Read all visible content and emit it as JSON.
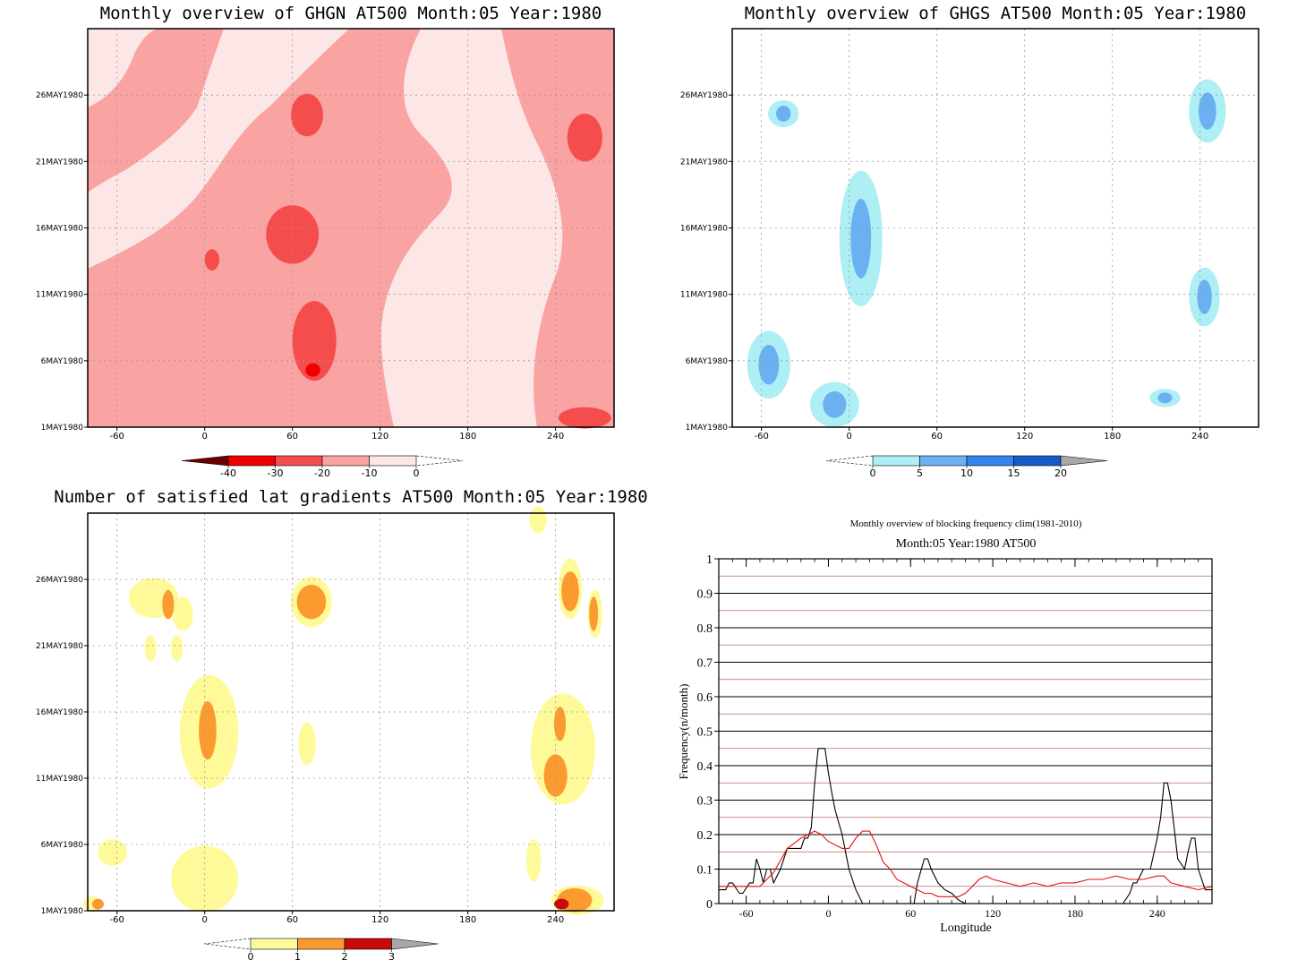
{
  "chart_data": [
    {
      "type": "heatmap",
      "title": "Monthly overview of GHGN AT500 Month:05 Year:1980",
      "x_ticks": [
        "-60",
        "0",
        "60",
        "120",
        "180",
        "240"
      ],
      "x_tick_values": [
        -60,
        0,
        60,
        120,
        180,
        240
      ],
      "y_ticks": [
        "1MAY1980",
        "6MAY1980",
        "11MAY1980",
        "16MAY1980",
        "21MAY1980",
        "26MAY1980"
      ],
      "y_tick_values": [
        1,
        6,
        11,
        16,
        21,
        26
      ],
      "xlim": [
        -80,
        280
      ],
      "ylim": [
        1,
        31
      ],
      "colorbar": {
        "labels": [
          "-40",
          "-30",
          "-20",
          "-10",
          "0"
        ],
        "colors": [
          "#6b0000",
          "#ee0000",
          "#f54c4c",
          "#f9a3a3",
          "#fde6e6"
        ]
      },
      "regions": [
        {
          "level": -20,
          "lon": 60,
          "day": 15.5,
          "rlon": 18,
          "rday": 2.2
        },
        {
          "level": -20,
          "lon": 75,
          "day": 7.5,
          "rlon": 15,
          "rday": 3.0
        },
        {
          "level": -20,
          "lon": 70,
          "day": 24.5,
          "rlon": 11,
          "rday": 1.6
        },
        {
          "level": -20,
          "lon": 5,
          "day": 13.6,
          "rlon": 5,
          "rday": 0.8
        },
        {
          "level": -20,
          "lon": 260,
          "day": 22.8,
          "rlon": 12,
          "rday": 1.8
        },
        {
          "level": -20,
          "lon": 260,
          "day": 1.7,
          "rlon": 18,
          "rday": 0.8
        },
        {
          "level": -30,
          "lon": 74,
          "day": 5.3,
          "rlon": 5,
          "rday": 0.5
        }
      ]
    },
    {
      "type": "heatmap",
      "title": "Monthly overview of GHGS AT500 Month:05 Year:1980",
      "x_ticks": [
        "-60",
        "0",
        "60",
        "120",
        "180",
        "240"
      ],
      "x_tick_values": [
        -60,
        0,
        60,
        120,
        180,
        240
      ],
      "y_ticks": [
        "1MAY1980",
        "6MAY1980",
        "11MAY1980",
        "16MAY1980",
        "21MAY1980",
        "26MAY1980"
      ],
      "y_tick_values": [
        1,
        6,
        11,
        16,
        21,
        26
      ],
      "xlim": [
        -80,
        280
      ],
      "ylim": [
        1,
        31
      ],
      "colorbar": {
        "labels": [
          "0",
          "5",
          "10",
          "15",
          "20"
        ],
        "colors": [
          "#aeeef5",
          "#6bb0f1",
          "#3284ef",
          "#1859c9",
          "#a8a8a8"
        ]
      },
      "regions": [
        {
          "level": 5,
          "lon": 8,
          "day": 15.2,
          "rlon": 7,
          "rday": 3.0
        },
        {
          "level": 5,
          "lon": -55,
          "day": 5.7,
          "rlon": 7,
          "rday": 1.5
        },
        {
          "level": 5,
          "lon": -45,
          "day": 24.6,
          "rlon": 5,
          "rday": 0.6
        },
        {
          "level": 5,
          "lon": 245,
          "day": 24.8,
          "rlon": 6,
          "rday": 1.4
        },
        {
          "level": 5,
          "lon": 243,
          "day": 10.8,
          "rlon": 5,
          "rday": 1.3
        },
        {
          "level": 5,
          "lon": -10,
          "day": 2.7,
          "rlon": 8,
          "rday": 1.0
        },
        {
          "level": 5,
          "lon": 216,
          "day": 3.2,
          "rlon": 5,
          "rday": 0.4
        }
      ]
    },
    {
      "type": "heatmap",
      "title": "Number of satisfied lat gradients AT500 Month:05 Year:1980",
      "x_ticks": [
        "-60",
        "0",
        "60",
        "120",
        "180",
        "240"
      ],
      "x_tick_values": [
        -60,
        0,
        60,
        120,
        180,
        240
      ],
      "y_ticks": [
        "1MAY1980",
        "6MAY1980",
        "11MAY1980",
        "16MAY1980",
        "21MAY1980",
        "26MAY1980"
      ],
      "y_tick_values": [
        1,
        6,
        11,
        16,
        21,
        26
      ],
      "xlim": [
        -80,
        280
      ],
      "ylim": [
        1,
        31
      ],
      "colorbar": {
        "labels": [
          "0",
          "1",
          "2",
          "3"
        ],
        "colors": [
          "#fffa99",
          "#fb9a2e",
          "#c8080a",
          "#a8a8a8"
        ]
      },
      "regions": [
        {
          "level": 0,
          "lon": -35,
          "day": 24.6,
          "rlon": 17,
          "rday": 1.5
        },
        {
          "level": 0,
          "lon": -15,
          "day": 23.4,
          "rlon": 7,
          "rday": 1.3
        },
        {
          "level": 0,
          "lon": -37,
          "day": 20.8,
          "rlon": 4,
          "rday": 1.0
        },
        {
          "level": 0,
          "lon": -19,
          "day": 20.8,
          "rlon": 4,
          "rday": 1.0
        },
        {
          "level": 0,
          "lon": 73,
          "day": 24.3,
          "rlon": 14,
          "rday": 1.9
        },
        {
          "level": 0,
          "lon": 228,
          "day": 30.5,
          "rlon": 6,
          "rday": 1.0
        },
        {
          "level": 0,
          "lon": 250,
          "day": 25.3,
          "rlon": 8,
          "rday": 2.3
        },
        {
          "level": 0,
          "lon": 267,
          "day": 23.4,
          "rlon": 5,
          "rday": 1.8
        },
        {
          "level": 0,
          "lon": 3,
          "day": 14.5,
          "rlon": 20,
          "rday": 4.3
        },
        {
          "level": 0,
          "lon": 70,
          "day": 13.6,
          "rlon": 6,
          "rday": 1.6
        },
        {
          "level": 0,
          "lon": 245,
          "day": 13.2,
          "rlon": 22,
          "rday": 4.2
        },
        {
          "level": 0,
          "lon": 225,
          "day": 4.8,
          "rlon": 5,
          "rday": 1.6
        },
        {
          "level": 0,
          "lon": -63,
          "day": 5.4,
          "rlon": 10,
          "rday": 1.0
        },
        {
          "level": 0,
          "lon": 0,
          "day": 3.4,
          "rlon": 23,
          "rday": 2.5
        },
        {
          "level": 0,
          "lon": 255,
          "day": 1.8,
          "rlon": 18,
          "rday": 1.1
        },
        {
          "level": 0,
          "lon": -77,
          "day": 1.5,
          "rlon": 6,
          "rday": 0.6
        },
        {
          "level": 1,
          "lon": -25,
          "day": 24.1,
          "rlon": 4,
          "rday": 1.1
        },
        {
          "level": 1,
          "lon": 73,
          "day": 24.3,
          "rlon": 10,
          "rday": 1.3
        },
        {
          "level": 1,
          "lon": 250,
          "day": 25.1,
          "rlon": 6,
          "rday": 1.5
        },
        {
          "level": 1,
          "lon": 266,
          "day": 23.4,
          "rlon": 3,
          "rday": 1.3
        },
        {
          "level": 1,
          "lon": 2,
          "day": 14.6,
          "rlon": 6,
          "rday": 2.2
        },
        {
          "level": 1,
          "lon": 243,
          "day": 15.1,
          "rlon": 4,
          "rday": 1.3
        },
        {
          "level": 1,
          "lon": 240,
          "day": 11.2,
          "rlon": 8,
          "rday": 1.6
        },
        {
          "level": 1,
          "lon": 253,
          "day": 1.8,
          "rlon": 12,
          "rday": 0.9
        },
        {
          "level": 2,
          "lon": 244,
          "day": 1.5,
          "rlon": 5,
          "rday": 0.4
        },
        {
          "level": 1,
          "lon": -73,
          "day": 1.5,
          "rlon": 4,
          "rday": 0.4
        }
      ]
    },
    {
      "type": "line",
      "title": "Monthly overview of blocking frequency clim(1981-2010)",
      "subtitle": "Month:05 Year:1980  AT500",
      "xlabel": "Longitude",
      "ylabel": "Frequency(n/month)",
      "xlim": [
        -80,
        280
      ],
      "ylim": [
        0,
        1
      ],
      "x_ticks": [
        "-60",
        "0",
        "60",
        "120",
        "180",
        "240"
      ],
      "x_tick_values": [
        -60,
        0,
        60,
        120,
        180,
        240
      ],
      "y_ticks": [
        "0",
        "0.1",
        "0.2",
        "0.3",
        "0.4",
        "0.5",
        "0.6",
        "0.7",
        "0.8",
        "0.9",
        "1"
      ],
      "y_tick_values": [
        0,
        0.1,
        0.2,
        0.3,
        0.4,
        0.5,
        0.6,
        0.7,
        0.8,
        0.9,
        1
      ],
      "grid": true,
      "series": [
        {
          "color": "#000000",
          "x": [
            -80,
            -75,
            -72.5,
            -70,
            -65,
            -62.5,
            -57.5,
            -55,
            -52.5,
            -50,
            -47.5,
            -45,
            -42.5,
            -40,
            -35,
            -30,
            -25,
            -20,
            -17.5,
            -15,
            -12.5,
            -10,
            -7.5,
            -5,
            -2.5,
            0,
            2.5,
            5,
            10,
            15,
            20,
            25,
            30,
            35,
            62.5,
            65,
            70,
            72.5,
            75,
            80,
            85,
            90,
            95,
            100,
            215,
            220,
            222.5,
            225,
            230,
            235,
            240,
            242.5,
            245,
            247.5,
            250,
            255,
            260,
            262.5,
            265,
            267.5,
            270,
            275,
            280
          ],
          "y": [
            0.04,
            0.04,
            0.06,
            0.06,
            0.03,
            0.03,
            0.06,
            0.06,
            0.13,
            0.1,
            0.06,
            0.1,
            0.1,
            0.06,
            0.1,
            0.16,
            0.16,
            0.16,
            0.19,
            0.19,
            0.22,
            0.35,
            0.45,
            0.45,
            0.45,
            0.38,
            0.32,
            0.27,
            0.2,
            0.1,
            0.04,
            0.0,
            0.0,
            0.0,
            0.0,
            0.06,
            0.13,
            0.13,
            0.1,
            0.06,
            0.04,
            0.03,
            0.01,
            0.0,
            0.0,
            0.03,
            0.06,
            0.06,
            0.1,
            0.1,
            0.19,
            0.25,
            0.35,
            0.35,
            0.3,
            0.13,
            0.1,
            0.15,
            0.19,
            0.19,
            0.1,
            0.04,
            0.04
          ]
        },
        {
          "color": "#e81010",
          "x": [
            -80,
            -70,
            -60,
            -50,
            -40,
            -30,
            -20,
            -10,
            -5,
            0,
            5,
            10,
            15,
            20,
            25,
            30,
            35,
            40,
            45,
            50,
            55,
            60,
            65,
            70,
            75,
            80,
            85,
            90,
            95,
            100,
            105,
            110,
            115,
            120,
            130,
            140,
            150,
            160,
            170,
            180,
            190,
            200,
            210,
            220,
            230,
            240,
            245,
            250,
            260,
            270,
            280
          ],
          "y": [
            0.05,
            0.05,
            0.05,
            0.05,
            0.09,
            0.16,
            0.19,
            0.21,
            0.2,
            0.18,
            0.17,
            0.16,
            0.16,
            0.19,
            0.21,
            0.21,
            0.17,
            0.12,
            0.1,
            0.07,
            0.06,
            0.05,
            0.04,
            0.03,
            0.03,
            0.02,
            0.02,
            0.02,
            0.02,
            0.03,
            0.05,
            0.07,
            0.08,
            0.07,
            0.06,
            0.05,
            0.06,
            0.05,
            0.06,
            0.06,
            0.07,
            0.07,
            0.08,
            0.07,
            0.07,
            0.08,
            0.08,
            0.06,
            0.05,
            0.04,
            0.05
          ]
        }
      ]
    }
  ]
}
